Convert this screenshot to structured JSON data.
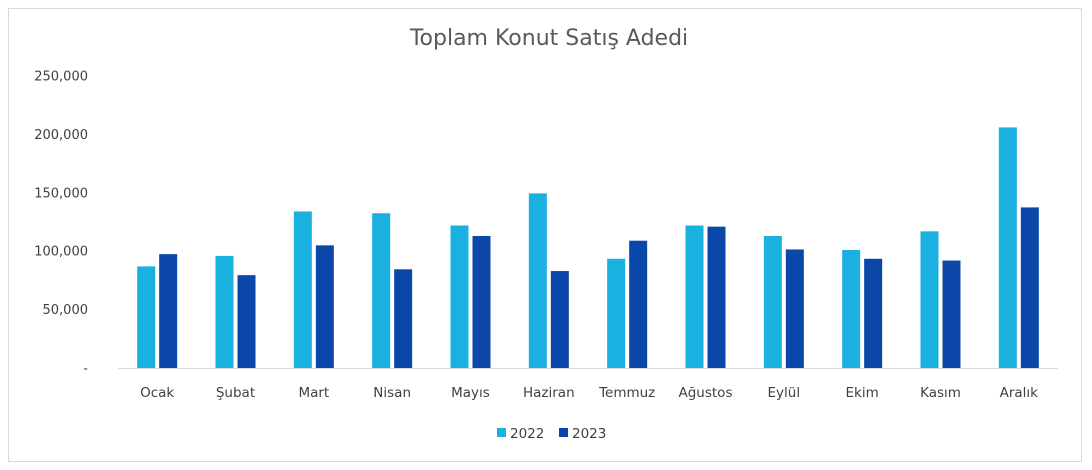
{
  "chart_data": {
    "type": "bar",
    "title": "Toplam Konut Satış Adedi",
    "categories": [
      "Ocak",
      "Şubat",
      "Mart",
      "Nisan",
      "Mayıs",
      "Haziran",
      "Temmuz",
      "Ağustos",
      "Eylül",
      "Ekim",
      "Kasım",
      "Aralık"
    ],
    "series": [
      {
        "name": "2022",
        "color": "#1ab0e0",
        "values": [
          87000,
          96000,
          134000,
          132500,
          122000,
          149500,
          93500,
          122000,
          113000,
          101000,
          117000,
          206000
        ]
      },
      {
        "name": "2023",
        "color": "#0a47a9",
        "values": [
          97500,
          79500,
          105000,
          84500,
          113000,
          83000,
          109000,
          121000,
          101500,
          93500,
          92000,
          137500
        ]
      }
    ],
    "ylim": [
      0,
      250000
    ],
    "yticks": [
      {
        "value": 0,
        "label": "-"
      },
      {
        "value": 50000,
        "label": "50,000"
      },
      {
        "value": 100000,
        "label": "100,000"
      },
      {
        "value": 150000,
        "label": "150,000"
      },
      {
        "value": 200000,
        "label": "200,000"
      },
      {
        "value": 250000,
        "label": "250,000"
      }
    ],
    "grid": false,
    "legend": "bottom",
    "xlabel": "",
    "ylabel": ""
  }
}
